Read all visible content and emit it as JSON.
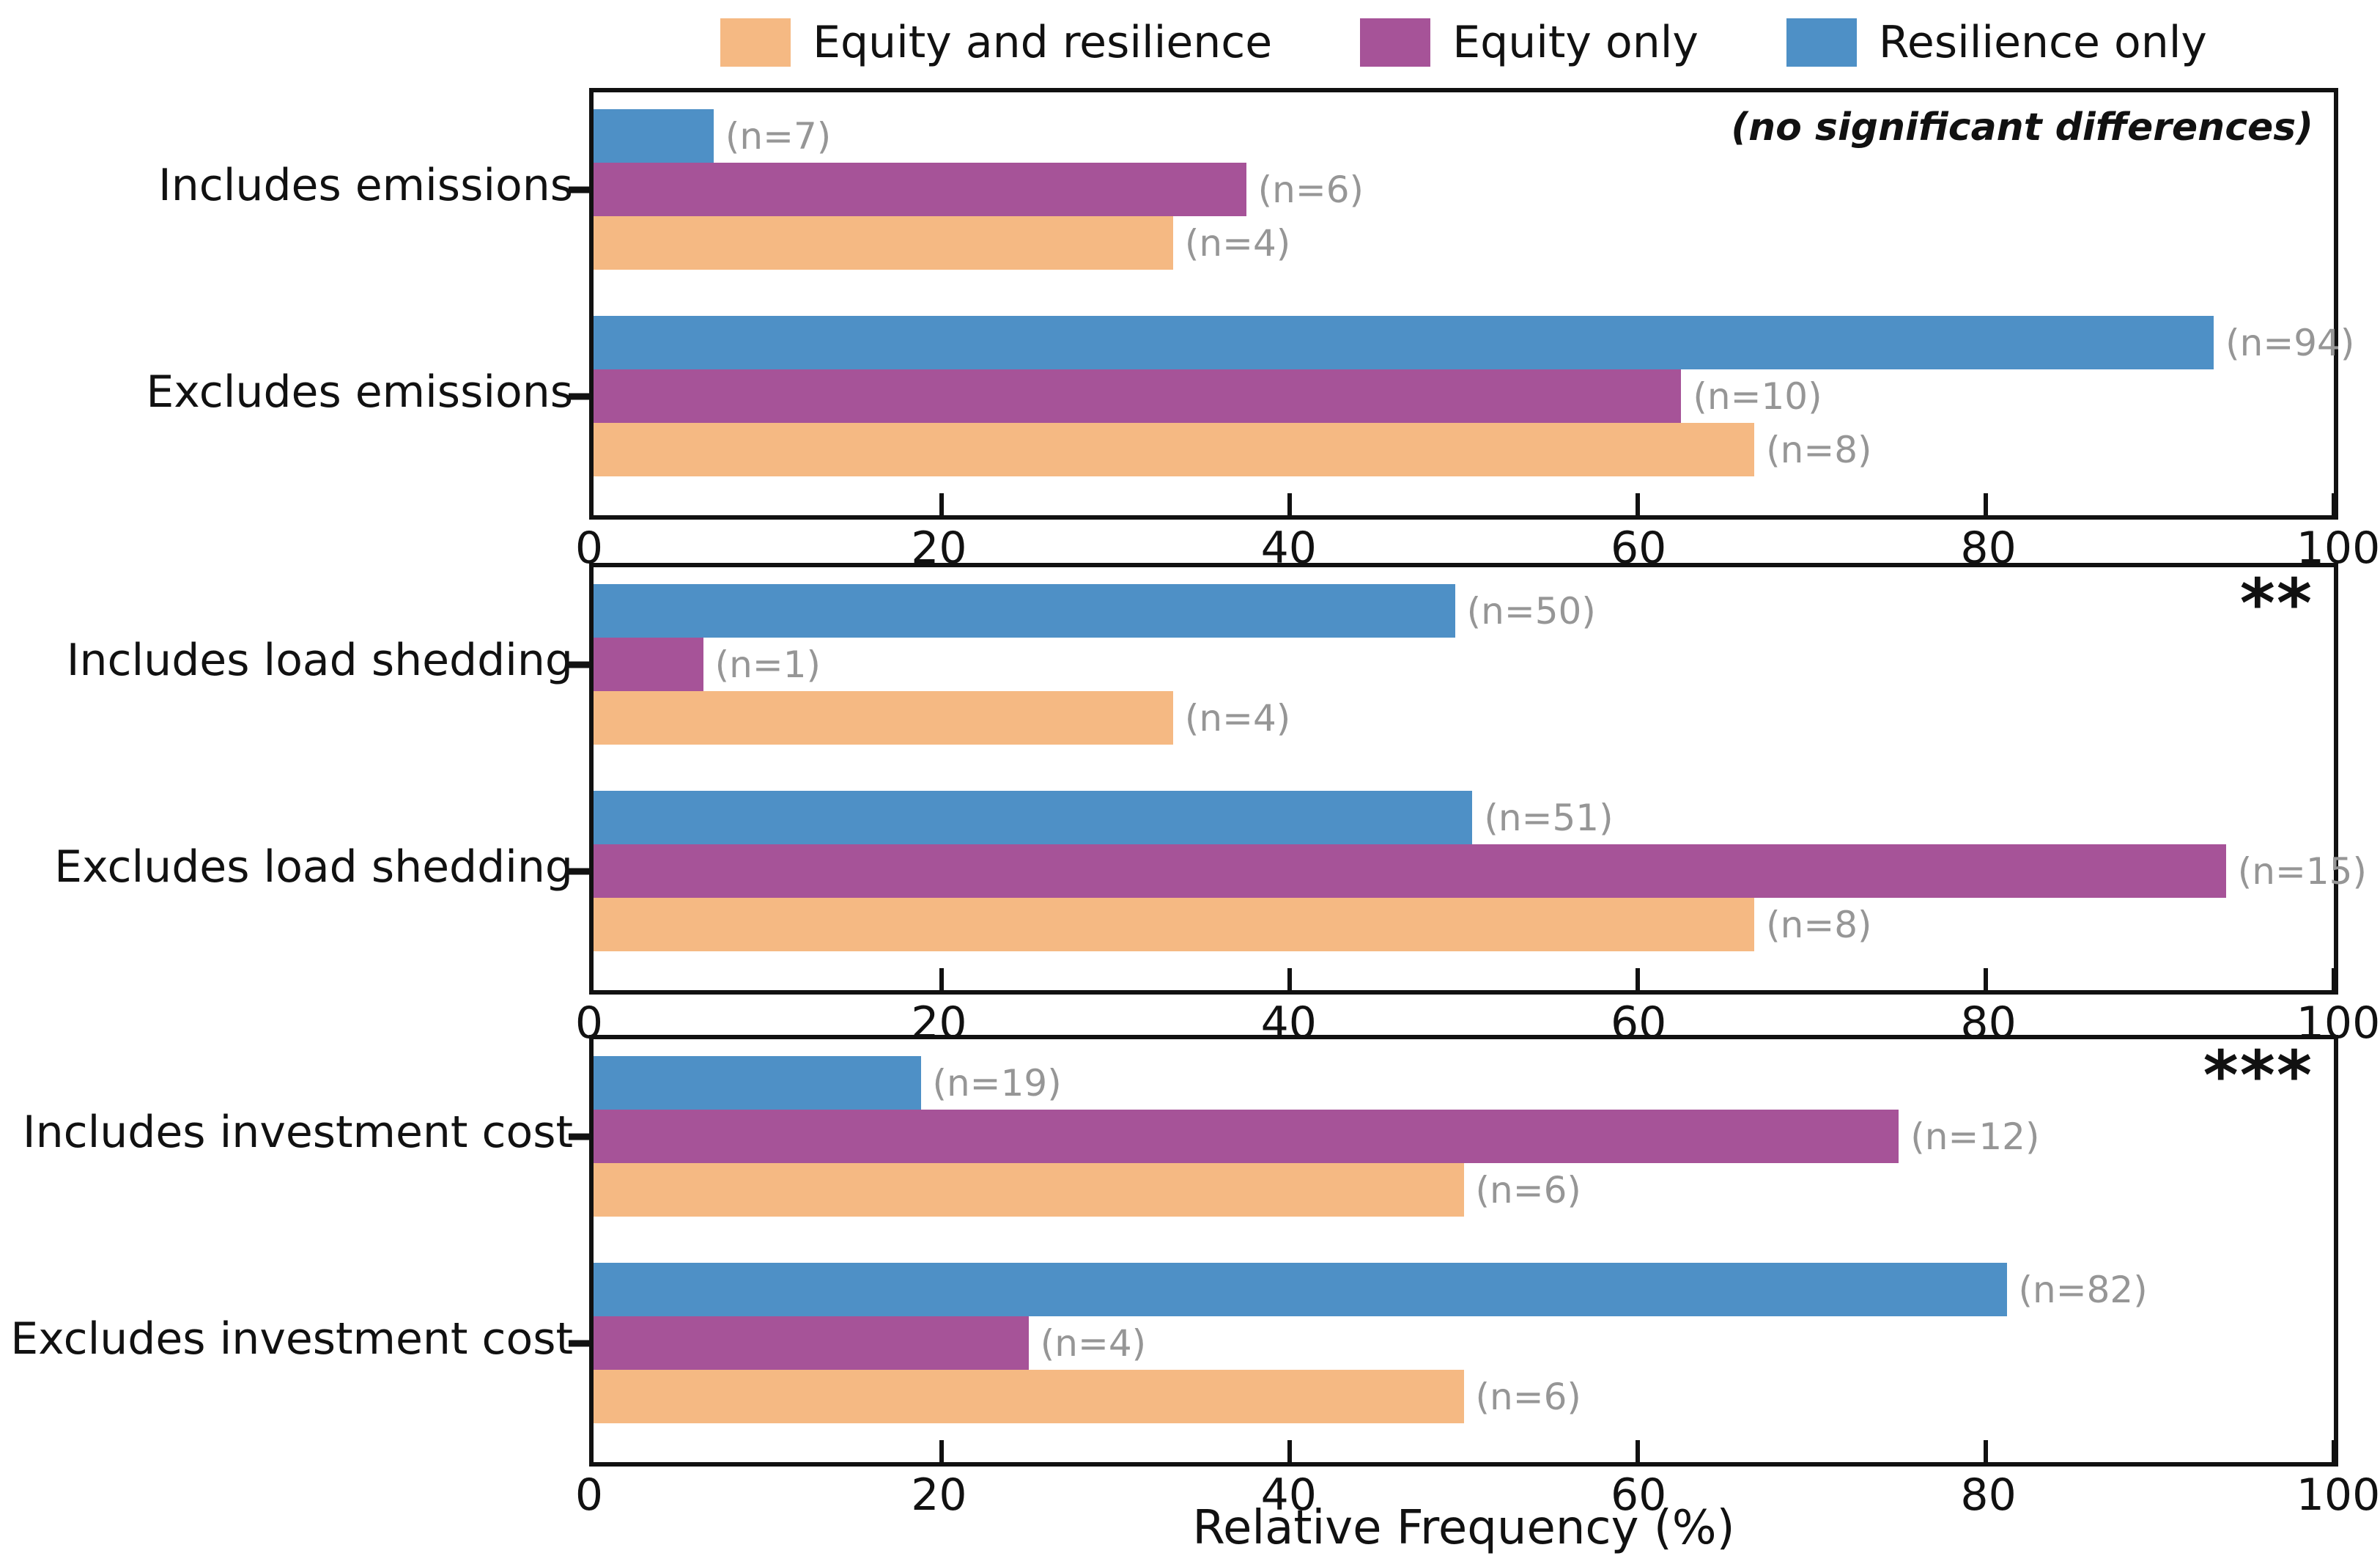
{
  "chart_data": {
    "type": "bar",
    "orientation": "horizontal",
    "xlabel": "Relative Frequency (%)",
    "xlim": [
      0,
      100
    ],
    "xticks": [
      "0",
      "20",
      "40",
      "60",
      "80",
      "100"
    ],
    "grid": false,
    "legend_position": "top-center",
    "legend": {
      "entries": [
        {
          "label": "Equity and resilience",
          "color": "#F5B983"
        },
        {
          "label": "Equity only",
          "color": "#A65398"
        },
        {
          "label": "Resilience only",
          "color": "#4E90C6"
        }
      ]
    },
    "colors": {
      "n_label_gray": "#969696",
      "axis_black": "#111111"
    },
    "panels": [
      {
        "annotation": "(no significant differences)",
        "annotation_style": "italic",
        "groups": [
          {
            "label": "Includes emissions",
            "bars": [
              {
                "series": "Resilience only",
                "value": 6.9,
                "n_label": "(n=7)"
              },
              {
                "series": "Equity only",
                "value": 37.5,
                "n_label": "(n=6)"
              },
              {
                "series": "Equity and resilience",
                "value": 33.3,
                "n_label": "(n=4)"
              }
            ]
          },
          {
            "label": "Excludes emissions",
            "bars": [
              {
                "series": "Resilience only",
                "value": 93.1,
                "n_label": "(n=94)"
              },
              {
                "series": "Equity only",
                "value": 62.5,
                "n_label": "(n=10)"
              },
              {
                "series": "Equity and resilience",
                "value": 66.7,
                "n_label": "(n=8)"
              }
            ]
          }
        ]
      },
      {
        "annotation": "**",
        "annotation_style": "stars",
        "groups": [
          {
            "label": "Includes load shedding",
            "bars": [
              {
                "series": "Resilience only",
                "value": 49.5,
                "n_label": "(n=50)"
              },
              {
                "series": "Equity only",
                "value": 6.3,
                "n_label": "(n=1)"
              },
              {
                "series": "Equity and resilience",
                "value": 33.3,
                "n_label": "(n=4)"
              }
            ]
          },
          {
            "label": "Excludes load shedding",
            "bars": [
              {
                "series": "Resilience only",
                "value": 50.5,
                "n_label": "(n=51)"
              },
              {
                "series": "Equity only",
                "value": 93.8,
                "n_label": "(n=15)"
              },
              {
                "series": "Equity and resilience",
                "value": 66.7,
                "n_label": "(n=8)"
              }
            ]
          }
        ]
      },
      {
        "annotation": "***",
        "annotation_style": "stars",
        "groups": [
          {
            "label": "Includes investment cost",
            "bars": [
              {
                "series": "Resilience only",
                "value": 18.8,
                "n_label": "(n=19)"
              },
              {
                "series": "Equity only",
                "value": 75.0,
                "n_label": "(n=12)"
              },
              {
                "series": "Equity and resilience",
                "value": 50.0,
                "n_label": "(n=6)"
              }
            ]
          },
          {
            "label": "Excludes investment cost",
            "bars": [
              {
                "series": "Resilience only",
                "value": 81.2,
                "n_label": "(n=82)"
              },
              {
                "series": "Equity only",
                "value": 25.0,
                "n_label": "(n=4)"
              },
              {
                "series": "Equity and resilience",
                "value": 50.0,
                "n_label": "(n=6)"
              }
            ]
          }
        ]
      }
    ]
  }
}
